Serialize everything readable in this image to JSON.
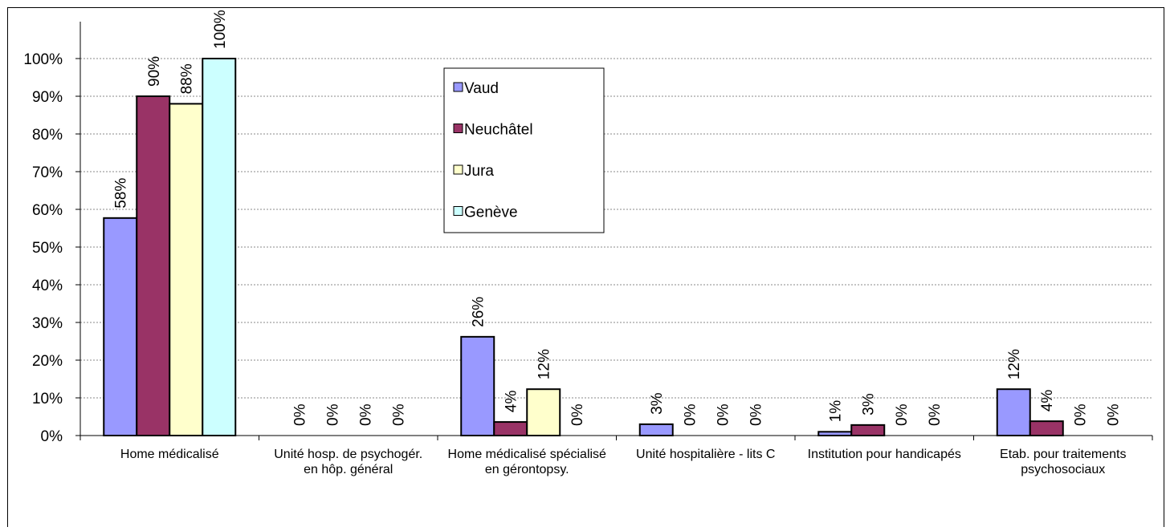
{
  "chart_data": {
    "type": "bar",
    "categories": [
      "Home médicalisé",
      "Unité hosp. de psychogér. en hôp. général",
      "Home médicalisé spécialisé en gérontopsy.",
      "Unité hospitalière - lits C",
      "Institution pour handicapés",
      "Etab. pour traitements psychosociaux"
    ],
    "series": [
      {
        "name": "Vaud",
        "color": "#9999ff",
        "values": [
          57.7,
          0,
          26.2,
          3,
          1,
          12.3
        ],
        "value_labels": [
          "58%",
          "0%",
          "26%",
          "3%",
          "1%",
          "12%"
        ]
      },
      {
        "name": "Neuchâtel",
        "color": "#993366",
        "values": [
          90,
          0,
          3.6,
          0,
          2.8,
          3.8
        ],
        "value_labels": [
          "90%",
          "0%",
          "4%",
          "0%",
          "3%",
          "4%"
        ]
      },
      {
        "name": "Jura",
        "color": "#ffffcc",
        "values": [
          88,
          0,
          12.3,
          0,
          0,
          0
        ],
        "value_labels": [
          "88%",
          "0%",
          "12%",
          "0%",
          "0%",
          "0%"
        ]
      },
      {
        "name": "Genève",
        "color": "#ccffff",
        "values": [
          100,
          0,
          0,
          0,
          0,
          0
        ],
        "value_labels": [
          "100%",
          "0%",
          "0%",
          "0%",
          "0%",
          "0%"
        ]
      }
    ],
    "ylim": [
      0,
      100
    ],
    "yticks": [
      {
        "value": 0,
        "label": "0%"
      },
      {
        "value": 10,
        "label": "10%"
      },
      {
        "value": 20,
        "label": "20%"
      },
      {
        "value": 30,
        "label": "30%"
      },
      {
        "value": 40,
        "label": "40%"
      },
      {
        "value": 50,
        "label": "50%"
      },
      {
        "value": 60,
        "label": "60%"
      },
      {
        "value": 70,
        "label": "70%"
      },
      {
        "value": 80,
        "label": "80%"
      },
      {
        "value": 90,
        "label": "90%"
      },
      {
        "value": 100,
        "label": "100%"
      }
    ],
    "grid": true,
    "legend": "upper center"
  }
}
